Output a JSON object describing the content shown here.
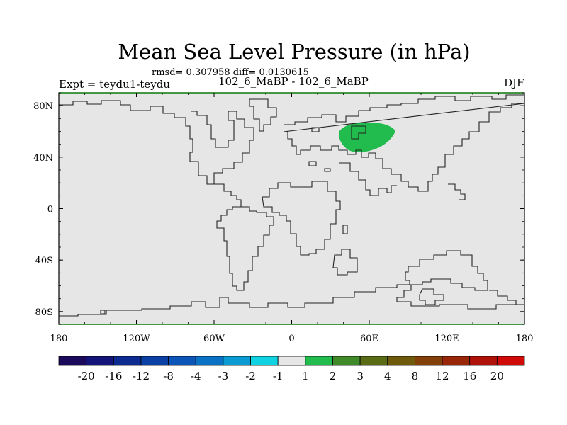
{
  "title": "Mean Sea Level Pressure (in hPa)",
  "stats_line": "rmsd= 0.307958 diff= 0.0130615",
  "left_label": "Expt = teydu1-teydu",
  "center_label": "102_6_MaBP - 102_6_MaBP",
  "right_label": "DJF",
  "chart_data": {
    "type": "heatmap",
    "projection": "cylindrical-equidistant",
    "field": "Mean Sea Level Pressure difference",
    "units": "hPa",
    "x_range": [
      -180,
      180
    ],
    "y_range": [
      -90,
      90
    ],
    "lat_ticks": [
      "80N",
      "40N",
      "0",
      "40S",
      "80S"
    ],
    "lat_tick_values": [
      80,
      40,
      0,
      -40,
      -80
    ],
    "lon_ticks": [
      "180",
      "120W",
      "60W",
      "0",
      "60E",
      "120E",
      "180"
    ],
    "lon_tick_values": [
      -180,
      -120,
      -60,
      0,
      60,
      120,
      180
    ],
    "background_category": "-1 to 1",
    "anomalies": [
      {
        "region": "Central Asia",
        "level": "1 to 2",
        "lon_center": 60,
        "lat_center": 55
      }
    ],
    "colorbar": {
      "labels": [
        "-20",
        "-16",
        "-12",
        "-8",
        "-4",
        "-3",
        "-2",
        "-1",
        "1",
        "2",
        "3",
        "4",
        "8",
        "12",
        "16",
        "20"
      ],
      "colors": [
        "#1b0a5c",
        "#14137a",
        "#0c2a8f",
        "#0a3fa3",
        "#0b55b7",
        "#0a72c4",
        "#0b9bd3",
        "#0fd3e0",
        "#e6e6e6",
        "#22bb4d",
        "#418a2a",
        "#5a6b16",
        "#6f5a0b",
        "#844009",
        "#9a2608",
        "#b01108",
        "#d00a06"
      ]
    }
  }
}
